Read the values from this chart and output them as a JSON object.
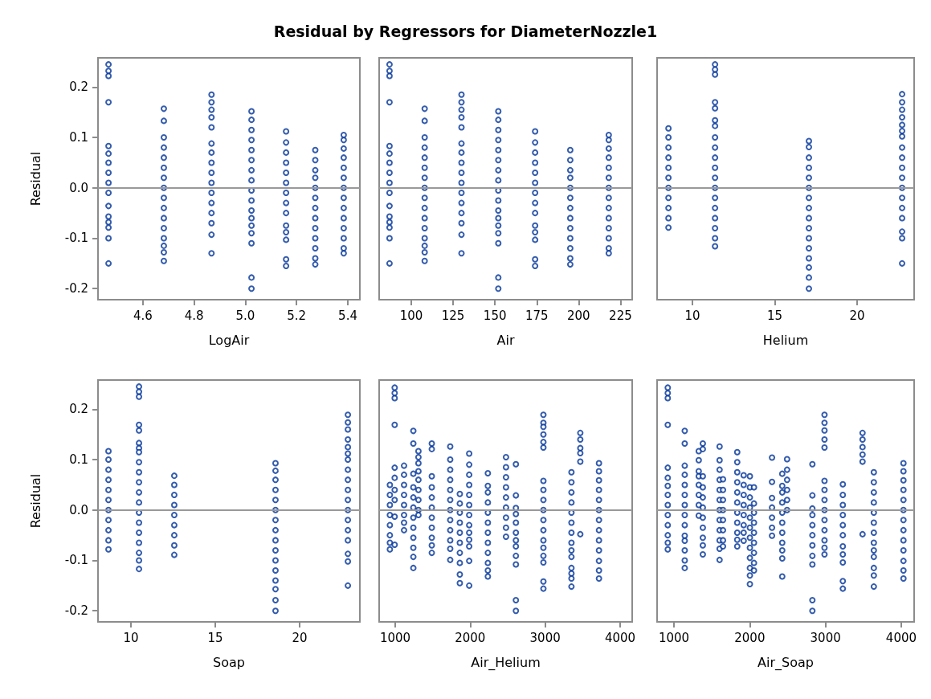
{
  "chart_data": [
    {
      "type": "scatter",
      "title": "Residual by Regressors for DiameterNozzle1",
      "xlabel": "LogAir",
      "ylabel": "Residual",
      "xlim": [
        4.425,
        5.447
      ],
      "xticks": [
        4.6,
        4.8,
        {
          "value": 5,
          "label": "5.0"
        },
        5.2,
        5.4
      ],
      "ylim": [
        -0.222,
        0.258
      ],
      "yticks": [
        -0.2,
        -0.1,
        {
          "value": 0,
          "label": "0.0"
        },
        0.1,
        0.2
      ],
      "grid": false,
      "marker": "circle",
      "ref_lines": [
        {
          "axis": "y",
          "value": 0,
          "color": "#999999"
        }
      ],
      "series": [
        {
          "color": "#003399",
          "x": [
            4.466,
            4.466,
            4.466,
            4.466,
            4.466,
            4.466,
            4.466,
            4.466,
            4.466,
            4.466,
            4.466,
            4.466,
            4.466,
            4.466,
            4.466,
            4.466
          ],
          "values": [
            0.245,
            0.232,
            0.222,
            0.17,
            0.083,
            0.068,
            0.05,
            0.03,
            0.01,
            -0.01,
            -0.036,
            -0.057,
            -0.068,
            -0.079,
            -0.1,
            -0.15
          ]
        },
        {
          "color": "#003399",
          "x": [
            4.682,
            4.682,
            4.682,
            4.682,
            4.682,
            4.682,
            4.682,
            4.682,
            4.682,
            4.682,
            4.682,
            4.682,
            4.682,
            4.682,
            4.682,
            4.682
          ],
          "values": [
            0.157,
            0.133,
            0.1,
            0.08,
            0.06,
            0.04,
            0.02,
            0,
            -0.02,
            -0.04,
            -0.06,
            -0.08,
            -0.1,
            -0.115,
            -0.128,
            -0.145
          ]
        },
        {
          "color": "#003399",
          "x": [
            4.868,
            4.868,
            4.868,
            4.868,
            4.868,
            4.868,
            4.868,
            4.868,
            4.868,
            4.868,
            4.868,
            4.868,
            4.868,
            4.868,
            4.868,
            4.868
          ],
          "values": [
            0.185,
            0.17,
            0.155,
            0.14,
            0.12,
            0.088,
            0.07,
            0.05,
            0.03,
            0.01,
            -0.01,
            -0.03,
            -0.05,
            -0.07,
            -0.093,
            -0.13
          ]
        },
        {
          "color": "#003399",
          "x": [
            5.024,
            5.024,
            5.024,
            5.024,
            5.024,
            5.024,
            5.024,
            5.024,
            5.024,
            5.024,
            5.024,
            5.024,
            5.024,
            5.024,
            5.024,
            5.024,
            5.024
          ],
          "values": [
            0.152,
            0.135,
            0.115,
            0.095,
            0.075,
            0.055,
            0.035,
            0.015,
            -0.005,
            -0.025,
            -0.045,
            -0.06,
            -0.075,
            -0.09,
            -0.11,
            -0.178,
            -0.2
          ]
        },
        {
          "color": "#003399",
          "x": [
            5.159,
            5.159,
            5.159,
            5.159,
            5.159,
            5.159,
            5.159,
            5.159,
            5.159,
            5.159,
            5.159,
            5.159,
            5.159,
            5.159
          ],
          "values": [
            0.112,
            0.09,
            0.07,
            0.05,
            0.03,
            0.01,
            -0.01,
            -0.03,
            -0.05,
            -0.075,
            -0.088,
            -0.103,
            -0.142,
            -0.155
          ]
        },
        {
          "color": "#003399",
          "x": [
            5.273,
            5.273,
            5.273,
            5.273,
            5.273,
            5.273,
            5.273,
            5.273,
            5.273,
            5.273,
            5.273,
            5.273,
            5.273
          ],
          "values": [
            0.075,
            0.055,
            0.035,
            0.02,
            0,
            -0.02,
            -0.04,
            -0.06,
            -0.08,
            -0.1,
            -0.12,
            -0.14,
            -0.152
          ]
        },
        {
          "color": "#003399",
          "x": [
            5.384,
            5.384,
            5.384,
            5.384,
            5.384,
            5.384,
            5.384,
            5.384,
            5.384,
            5.384,
            5.384,
            5.384,
            5.384,
            5.384
          ],
          "values": [
            0.105,
            0.095,
            0.078,
            0.06,
            0.04,
            0.02,
            0,
            -0.02,
            -0.04,
            -0.06,
            -0.08,
            -0.1,
            -0.12,
            -0.13
          ]
        }
      ]
    },
    {
      "type": "scatter",
      "xlabel": "Air",
      "xlim": [
        80.8,
        232
      ],
      "xticks": [
        100,
        125,
        150,
        175,
        200,
        225
      ],
      "ylim": [
        -0.222,
        0.258
      ],
      "tick_labels": "x",
      "grid": false,
      "marker": "circle",
      "ref_lines": [
        {
          "axis": "y",
          "value": 0,
          "color": "#999999"
        }
      ],
      "series": [
        {
          "color": "#003399",
          "x": [
            87,
            87,
            87,
            87,
            87,
            87,
            87,
            87,
            87,
            87,
            87,
            87,
            87,
            87,
            87,
            87
          ],
          "values": [
            0.245,
            0.232,
            0.222,
            0.17,
            0.083,
            0.068,
            0.05,
            0.03,
            0.01,
            -0.01,
            -0.036,
            -0.057,
            -0.068,
            -0.079,
            -0.1,
            -0.15
          ]
        },
        {
          "color": "#003399",
          "x": [
            108,
            108,
            108,
            108,
            108,
            108,
            108,
            108,
            108,
            108,
            108,
            108,
            108,
            108,
            108,
            108
          ],
          "values": [
            0.157,
            0.133,
            0.1,
            0.08,
            0.06,
            0.04,
            0.02,
            0,
            -0.02,
            -0.04,
            -0.06,
            -0.08,
            -0.1,
            -0.115,
            -0.128,
            -0.145
          ]
        },
        {
          "color": "#003399",
          "x": [
            130,
            130,
            130,
            130,
            130,
            130,
            130,
            130,
            130,
            130,
            130,
            130,
            130,
            130,
            130,
            130
          ],
          "values": [
            0.185,
            0.17,
            0.155,
            0.14,
            0.12,
            0.088,
            0.07,
            0.05,
            0.03,
            0.01,
            -0.01,
            -0.03,
            -0.05,
            -0.07,
            -0.093,
            -0.13
          ]
        },
        {
          "color": "#003399",
          "x": [
            152,
            152,
            152,
            152,
            152,
            152,
            152,
            152,
            152,
            152,
            152,
            152,
            152,
            152,
            152,
            152,
            152
          ],
          "values": [
            0.152,
            0.135,
            0.115,
            0.095,
            0.075,
            0.055,
            0.035,
            0.015,
            -0.005,
            -0.025,
            -0.045,
            -0.06,
            -0.075,
            -0.09,
            -0.11,
            -0.178,
            -0.2
          ]
        },
        {
          "color": "#003399",
          "x": [
            174,
            174,
            174,
            174,
            174,
            174,
            174,
            174,
            174,
            174,
            174,
            174,
            174,
            174
          ],
          "values": [
            0.112,
            0.09,
            0.07,
            0.05,
            0.03,
            0.01,
            -0.01,
            -0.03,
            -0.05,
            -0.075,
            -0.088,
            -0.103,
            -0.142,
            -0.155
          ]
        },
        {
          "color": "#003399",
          "x": [
            195,
            195,
            195,
            195,
            195,
            195,
            195,
            195,
            195,
            195,
            195,
            195,
            195
          ],
          "values": [
            0.075,
            0.055,
            0.035,
            0.02,
            0,
            -0.02,
            -0.04,
            -0.06,
            -0.08,
            -0.1,
            -0.12,
            -0.14,
            -0.152
          ]
        },
        {
          "color": "#003399",
          "x": [
            218,
            218,
            218,
            218,
            218,
            218,
            218,
            218,
            218,
            218,
            218,
            218,
            218,
            218
          ],
          "values": [
            0.105,
            0.095,
            0.078,
            0.06,
            0.04,
            0.02,
            0,
            -0.02,
            -0.04,
            -0.06,
            -0.08,
            -0.1,
            -0.12,
            -0.13
          ]
        }
      ]
    },
    {
      "type": "scatter",
      "xlabel": "Helium",
      "xlim": [
        7.85,
        23.46
      ],
      "xticks": [
        10,
        15,
        20
      ],
      "ylim": [
        -0.222,
        0.258
      ],
      "tick_labels": "x",
      "grid": false,
      "marker": "circle",
      "ref_lines": [
        {
          "axis": "y",
          "value": 0,
          "color": "#999999"
        }
      ],
      "series": [
        {
          "color": "#003399",
          "x": [
            8.54,
            8.54,
            8.54,
            8.54,
            8.54,
            8.54,
            8.54,
            8.54,
            8.54,
            8.54,
            8.54
          ],
          "values": [
            0.118,
            0.1,
            0.08,
            0.06,
            0.04,
            0.02,
            0,
            -0.02,
            -0.04,
            -0.06,
            -0.079
          ]
        },
        {
          "color": "#003399",
          "x": [
            11.37,
            11.37,
            11.37,
            11.37,
            11.37,
            11.37,
            11.37,
            11.37,
            11.37,
            11.37,
            11.37,
            11.37,
            11.37,
            11.37,
            11.37,
            11.37,
            11.37,
            11.37,
            11.37
          ],
          "values": [
            0.245,
            0.235,
            0.225,
            0.17,
            0.158,
            0.134,
            0.123,
            0.1,
            0.08,
            0.06,
            0.04,
            0.02,
            0,
            -0.02,
            -0.04,
            -0.06,
            -0.08,
            -0.1,
            -0.116
          ]
        },
        {
          "color": "#003399",
          "x": [
            17.07,
            17.07,
            17.07,
            17.07,
            17.07,
            17.07,
            17.07,
            17.07,
            17.07,
            17.07,
            17.07,
            17.07,
            17.07,
            17.07,
            17.07,
            17.07
          ],
          "values": [
            0.093,
            0.081,
            0.06,
            0.04,
            0.02,
            0,
            -0.02,
            -0.04,
            -0.06,
            -0.08,
            -0.1,
            -0.12,
            -0.14,
            -0.158,
            -0.178,
            -0.2
          ]
        },
        {
          "color": "#003399",
          "x": [
            22.73,
            22.73,
            22.73,
            22.73,
            22.73,
            22.73,
            22.73,
            22.73,
            22.73,
            22.73,
            22.73,
            22.73,
            22.73,
            22.73,
            22.73,
            22.73,
            22.73,
            22.73
          ],
          "values": [
            0.186,
            0.17,
            0.155,
            0.14,
            0.125,
            0.113,
            0.102,
            0.08,
            0.06,
            0.04,
            0.02,
            0,
            -0.02,
            -0.04,
            -0.06,
            -0.087,
            -0.1,
            -0.15
          ]
        }
      ]
    },
    {
      "type": "scatter",
      "xlabel": "Soap",
      "ylabel": "Residual",
      "xlim": [
        8.05,
        23.57
      ],
      "xticks": [
        10,
        15,
        20
      ],
      "ylim": [
        -0.222,
        0.258
      ],
      "yticks": [
        -0.2,
        -0.1,
        {
          "value": 0,
          "label": "0.0"
        },
        0.1,
        0.2
      ],
      "grid": false,
      "marker": "circle",
      "ref_lines": [
        {
          "axis": "y",
          "value": 0,
          "color": "#999999"
        }
      ],
      "series": [
        {
          "color": "#003399",
          "x": [
            8.67,
            8.67,
            8.67,
            8.67,
            8.67,
            8.67,
            8.67,
            8.67,
            8.67,
            8.67,
            8.67
          ],
          "values": [
            0.117,
            0.1,
            0.08,
            0.06,
            0.04,
            0.02,
            0,
            -0.02,
            -0.04,
            -0.06,
            -0.078
          ]
        },
        {
          "color": "#003399",
          "x": [
            10.48,
            10.48,
            10.48,
            10.48,
            10.48,
            10.48,
            10.48,
            10.48,
            10.48,
            10.48,
            10.48,
            10.48,
            10.48,
            10.48,
            10.48,
            10.48,
            10.48,
            10.48,
            10.48,
            10.48
          ],
          "values": [
            0.245,
            0.235,
            0.225,
            0.169,
            0.158,
            0.133,
            0.123,
            0.115,
            0.095,
            0.075,
            0.055,
            0.035,
            0.015,
            -0.005,
            -0.025,
            -0.045,
            -0.065,
            -0.085,
            -0.1,
            -0.117
          ]
        },
        {
          "color": "#003399",
          "x": [
            12.57,
            12.57,
            12.57,
            12.57,
            12.57,
            12.57,
            12.57,
            12.57,
            12.57
          ],
          "values": [
            0.068,
            0.05,
            0.03,
            0.01,
            -0.01,
            -0.03,
            -0.05,
            -0.07,
            -0.089
          ]
        },
        {
          "color": "#003399",
          "x": [
            18.57,
            18.57,
            18.57,
            18.57,
            18.57,
            18.57,
            18.57,
            18.57,
            18.57,
            18.57,
            18.57,
            18.57,
            18.57,
            18.57,
            18.57,
            18.57
          ],
          "values": [
            0.093,
            0.078,
            0.06,
            0.04,
            0.02,
            0,
            -0.02,
            -0.04,
            -0.06,
            -0.08,
            -0.1,
            -0.12,
            -0.14,
            -0.157,
            -0.179,
            -0.2
          ]
        },
        {
          "color": "#003399",
          "x": [
            22.86,
            22.86,
            22.86,
            22.86,
            22.86,
            22.86,
            22.86,
            22.86,
            22.86,
            22.86,
            22.86,
            22.86,
            22.86,
            22.86,
            22.86,
            22.86,
            22.86,
            22.86
          ],
          "values": [
            0.189,
            0.174,
            0.16,
            0.14,
            0.125,
            0.112,
            0.1,
            0.08,
            0.06,
            0.04,
            0.02,
            0,
            -0.02,
            -0.04,
            -0.06,
            -0.087,
            -0.102,
            -0.15
          ]
        }
      ]
    },
    {
      "type": "scatter",
      "xlabel": "Air_Helium",
      "xlim": [
        786,
        4161
      ],
      "xticks": [
        1000,
        2000,
        3000,
        4000
      ],
      "ylim": [
        -0.222,
        0.258
      ],
      "tick_labels": "x",
      "grid": false,
      "marker": "circle",
      "ref_lines": [
        {
          "axis": "y",
          "value": 0,
          "color": "#999999"
        }
      ],
      "series": [
        {
          "color": "#003399",
          "x": [
            929,
            929,
            929,
            929,
            929,
            929,
            929,
            929
          ],
          "values": [
            0.05,
            0.03,
            0.01,
            -0.01,
            -0.03,
            -0.05,
            -0.065,
            -0.078
          ]
        },
        {
          "color": "#003399",
          "x": [
            993,
            993,
            993,
            993,
            993,
            993,
            993,
            993,
            993,
            993
          ],
          "values": [
            0.243,
            0.232,
            0.222,
            0.169,
            0.084,
            0.064,
            0.04,
            0.02,
            -0.013,
            -0.069
          ]
        },
        {
          "color": "#003399",
          "x": [
            1118,
            1118,
            1118,
            1118,
            1118,
            1118,
            1118,
            1118
          ],
          "values": [
            0.088,
            0.07,
            0.05,
            0.03,
            0.01,
            -0.01,
            -0.025,
            -0.04
          ]
        },
        {
          "color": "#003399",
          "x": [
            1242,
            1242,
            1242,
            1242,
            1242,
            1242,
            1242,
            1242,
            1242,
            1242,
            1242,
            1242
          ],
          "values": [
            0.157,
            0.132,
            0.072,
            0.045,
            0.025,
            0.005,
            -0.015,
            -0.035,
            -0.055,
            -0.075,
            -0.093,
            -0.115
          ]
        },
        {
          "color": "#003399",
          "x": [
            1310,
            1310,
            1310,
            1310,
            1310,
            1310,
            1310,
            1310,
            1310
          ],
          "values": [
            0.117,
            0.105,
            0.093,
            0.077,
            0.06,
            0.04,
            0.02,
            0,
            -0.01
          ]
        },
        {
          "color": "#003399",
          "x": [
            1488,
            1488,
            1488,
            1488,
            1488,
            1488,
            1488,
            1488,
            1488,
            1488,
            1488
          ],
          "values": [
            0.132,
            0.121,
            0.067,
            0.045,
            0.025,
            0.005,
            -0.015,
            -0.035,
            -0.055,
            -0.07,
            -0.085
          ]
        },
        {
          "color": "#003399",
          "x": [
            1734,
            1734,
            1734,
            1734,
            1734,
            1734,
            1734,
            1734,
            1734,
            1734,
            1734,
            1734
          ],
          "values": [
            0.126,
            0.1,
            0.08,
            0.06,
            0.04,
            0.02,
            0,
            -0.02,
            -0.04,
            -0.06,
            -0.077,
            -0.099
          ]
        },
        {
          "color": "#003399",
          "x": [
            1862,
            1862,
            1862,
            1862,
            1862,
            1862,
            1862,
            1862,
            1862,
            1862
          ],
          "values": [
            0.032,
            0.013,
            -0.005,
            -0.025,
            -0.045,
            -0.065,
            -0.085,
            -0.105,
            -0.128,
            -0.145
          ]
        },
        {
          "color": "#003399",
          "x": [
            1987,
            1987,
            1987,
            1987,
            1987,
            1987,
            1987,
            1987,
            1987,
            1987,
            1987,
            1987,
            1987
          ],
          "values": [
            0.112,
            0.09,
            0.07,
            0.05,
            0.03,
            0.01,
            -0.01,
            -0.03,
            -0.045,
            -0.059,
            -0.072,
            -0.101,
            -0.15
          ]
        },
        {
          "color": "#003399",
          "x": [
            2236,
            2236,
            2236,
            2236,
            2236,
            2236,
            2236,
            2236,
            2236,
            2236,
            2236,
            2236
          ],
          "values": [
            0.073,
            0.048,
            0.035,
            0.015,
            -0.005,
            -0.025,
            -0.045,
            -0.065,
            -0.085,
            -0.105,
            -0.12,
            -0.132
          ]
        },
        {
          "color": "#003399",
          "x": [
            2478,
            2478,
            2478,
            2478,
            2478,
            2478,
            2478,
            2478,
            2478
          ],
          "values": [
            0.105,
            0.085,
            0.065,
            0.045,
            0.025,
            0.005,
            -0.015,
            -0.035,
            -0.053
          ]
        },
        {
          "color": "#003399",
          "x": [
            2610,
            2610,
            2610,
            2610,
            2610,
            2610,
            2610,
            2610,
            2610,
            2610,
            2610,
            2610
          ],
          "values": [
            0.091,
            0.029,
            0.004,
            -0.008,
            -0.025,
            -0.045,
            -0.06,
            -0.072,
            -0.091,
            -0.108,
            -0.179,
            -0.2
          ]
        },
        {
          "color": "#003399",
          "x": [
            2977,
            2977,
            2977,
            2977,
            2977,
            2977,
            2977,
            2977,
            2977,
            2977,
            2977,
            2977,
            2977,
            2977,
            2977,
            2977,
            2977,
            2977
          ],
          "values": [
            0.189,
            0.173,
            0.165,
            0.15,
            0.135,
            0.124,
            0.058,
            0.04,
            0.02,
            0,
            -0.02,
            -0.04,
            -0.06,
            -0.075,
            -0.091,
            -0.104,
            -0.142,
            -0.156
          ]
        },
        {
          "color": "#003399",
          "x": [
            3351,
            3351,
            3351,
            3351,
            3351,
            3351,
            3351,
            3351,
            3351,
            3351,
            3351,
            3351,
            3351,
            3351
          ],
          "values": [
            0.075,
            0.055,
            0.035,
            0.015,
            -0.005,
            -0.025,
            -0.045,
            -0.065,
            -0.08,
            -0.093,
            -0.115,
            -0.126,
            -0.136,
            -0.152
          ]
        },
        {
          "color": "#003399",
          "x": [
            3469,
            3469,
            3469,
            3469,
            3469,
            3469
          ],
          "values": [
            0.153,
            0.14,
            0.123,
            0.113,
            0.096,
            -0.048
          ]
        },
        {
          "color": "#003399",
          "x": [
            3718,
            3718,
            3718,
            3718,
            3718,
            3718,
            3718,
            3718,
            3718,
            3718,
            3718,
            3718,
            3718
          ],
          "values": [
            0.093,
            0.077,
            0.059,
            0.04,
            0.02,
            0,
            -0.02,
            -0.04,
            -0.06,
            -0.08,
            -0.101,
            -0.12,
            -0.136
          ]
        }
      ]
    },
    {
      "type": "scatter",
      "xlabel": "Air_Soap",
      "xlim": [
        777,
        4170
      ],
      "xticks": [
        1000,
        2000,
        3000,
        4000
      ],
      "ylim": [
        -0.222,
        0.258
      ],
      "tick_labels": "x",
      "grid": false,
      "marker": "circle",
      "ref_lines": [
        {
          "axis": "y",
          "value": 0,
          "color": "#999999"
        }
      ],
      "series": [
        {
          "color": "#003399",
          "x": [
            918,
            918,
            918,
            918,
            918,
            918,
            918,
            918,
            918,
            918,
            918,
            918,
            918,
            918
          ],
          "values": [
            0.243,
            0.232,
            0.222,
            0.169,
            0.084,
            0.064,
            0.048,
            0.03,
            0.01,
            -0.01,
            -0.03,
            -0.05,
            -0.065,
            -0.078
          ]
        },
        {
          "color": "#003399",
          "x": [
            1142,
            1142,
            1142,
            1142,
            1142,
            1142,
            1142,
            1142,
            1142,
            1142,
            1142,
            1142,
            1142,
            1142
          ],
          "values": [
            0.157,
            0.132,
            0.088,
            0.07,
            0.05,
            0.03,
            0.01,
            -0.01,
            -0.03,
            -0.051,
            -0.061,
            -0.08,
            -0.1,
            -0.115
          ]
        },
        {
          "color": "#003399",
          "x": [
            1327,
            1327,
            1327,
            1327,
            1327,
            1327,
            1327,
            1327
          ],
          "values": [
            0.117,
            0.099,
            0.077,
            0.067,
            0.05,
            0.03,
            0.01,
            -0.011
          ]
        },
        {
          "color": "#003399",
          "x": [
            1381,
            1381,
            1381,
            1381,
            1381,
            1381,
            1381,
            1381,
            1381,
            1381,
            1381
          ],
          "values": [
            0.132,
            0.121,
            0.067,
            0.045,
            0.025,
            0.005,
            -0.015,
            -0.035,
            -0.055,
            -0.07,
            -0.088
          ]
        },
        {
          "color": "#003399",
          "x": [
            1602,
            1602,
            1602,
            1602,
            1602,
            1602,
            1602,
            1602,
            1602,
            1602,
            1602,
            1602
          ],
          "values": [
            0.126,
            0.099,
            0.08,
            0.06,
            0.04,
            0.02,
            0,
            -0.02,
            -0.04,
            -0.06,
            -0.077,
            -0.099
          ]
        },
        {
          "color": "#003399",
          "x": [
            1647,
            1647,
            1647,
            1647,
            1647,
            1647,
            1647,
            1647
          ],
          "values": [
            0.061,
            0.04,
            0.02,
            0,
            -0.02,
            -0.04,
            -0.06,
            -0.072
          ]
        },
        {
          "color": "#003399",
          "x": [
            1835,
            1835,
            1835,
            1835,
            1835,
            1835,
            1835,
            1835,
            1835,
            1835,
            1835
          ],
          "values": [
            0.115,
            0.095,
            0.075,
            0.055,
            0.035,
            0.015,
            -0.005,
            -0.025,
            -0.045,
            -0.059,
            -0.072
          ]
        },
        {
          "color": "#003399",
          "x": [
            1920,
            1920,
            1920,
            1920,
            1920,
            1920,
            1920,
            1920
          ],
          "values": [
            0.069,
            0.05,
            0.03,
            0.01,
            -0.01,
            -0.03,
            -0.045,
            -0.061
          ]
        },
        {
          "color": "#003399",
          "x": [
            2002,
            2002,
            2002,
            2002,
            2002,
            2002,
            2002,
            2002,
            2002,
            2002,
            2002,
            2002
          ],
          "values": [
            0.067,
            0.045,
            0.025,
            0.005,
            -0.015,
            -0.035,
            -0.055,
            -0.075,
            -0.095,
            -0.115,
            -0.13,
            -0.147
          ]
        },
        {
          "color": "#003399",
          "x": [
            2056,
            2056,
            2056,
            2056,
            2056,
            2056,
            2056,
            2056,
            2056
          ],
          "values": [
            0.045,
            0.013,
            -0.005,
            -0.025,
            -0.045,
            -0.065,
            -0.085,
            -0.105,
            -0.12
          ]
        },
        {
          "color": "#003399",
          "x": [
            2294,
            2294,
            2294,
            2294,
            2294,
            2294,
            2294
          ],
          "values": [
            0.104,
            0.056,
            0.024,
            0.005,
            -0.015,
            -0.035,
            -0.051
          ]
        },
        {
          "color": "#003399",
          "x": [
            2429,
            2429,
            2429,
            2429,
            2429,
            2429,
            2429,
            2429,
            2429,
            2429,
            2429
          ],
          "values": [
            0.072,
            0.048,
            0.035,
            0.015,
            -0.005,
            -0.025,
            -0.045,
            -0.065,
            -0.08,
            -0.096,
            -0.132
          ]
        },
        {
          "color": "#003399",
          "x": [
            2493,
            2493,
            2493,
            2493,
            2493,
            2493
          ],
          "values": [
            0.101,
            0.08,
            0.06,
            0.04,
            0.02,
            0
          ]
        },
        {
          "color": "#003399",
          "x": [
            2827,
            2827,
            2827,
            2827,
            2827,
            2827,
            2827,
            2827,
            2827,
            2827,
            2827
          ],
          "values": [
            0.091,
            0.029,
            0.003,
            -0.01,
            -0.03,
            -0.05,
            -0.07,
            -0.091,
            -0.108,
            -0.179,
            -0.2
          ]
        },
        {
          "color": "#003399",
          "x": [
            2987,
            2987,
            2987,
            2987,
            2987,
            2987,
            2987,
            2987,
            2987,
            2987,
            2987,
            2987,
            2987,
            2987
          ],
          "values": [
            0.189,
            0.173,
            0.158,
            0.14,
            0.124,
            0.058,
            0.04,
            0.02,
            0,
            -0.02,
            -0.04,
            -0.06,
            -0.075,
            -0.088
          ]
        },
        {
          "color": "#003399",
          "x": [
            3229,
            3229,
            3229,
            3229,
            3229,
            3229,
            3229,
            3229,
            3229,
            3229,
            3229
          ],
          "values": [
            0.051,
            0.03,
            0.01,
            -0.01,
            -0.03,
            -0.05,
            -0.072,
            -0.088,
            -0.104,
            -0.141,
            -0.156
          ]
        },
        {
          "color": "#003399",
          "x": [
            3489,
            3489,
            3489,
            3489,
            3489,
            3489
          ],
          "values": [
            0.153,
            0.14,
            0.125,
            0.11,
            0.096,
            -0.048
          ]
        },
        {
          "color": "#003399",
          "x": [
            3638,
            3638,
            3638,
            3638,
            3638,
            3638,
            3638,
            3638,
            3638,
            3638,
            3638,
            3638,
            3638
          ],
          "values": [
            0.075,
            0.055,
            0.035,
            0.015,
            -0.005,
            -0.025,
            -0.045,
            -0.065,
            -0.08,
            -0.093,
            -0.115,
            -0.13,
            -0.152
          ]
        },
        {
          "color": "#003399",
          "x": [
            4029,
            4029,
            4029,
            4029,
            4029,
            4029,
            4029,
            4029,
            4029,
            4029,
            4029,
            4029,
            4029
          ],
          "values": [
            0.093,
            0.077,
            0.059,
            0.04,
            0.02,
            0,
            -0.02,
            -0.04,
            -0.06,
            -0.08,
            -0.101,
            -0.12,
            -0.136
          ]
        }
      ]
    }
  ]
}
